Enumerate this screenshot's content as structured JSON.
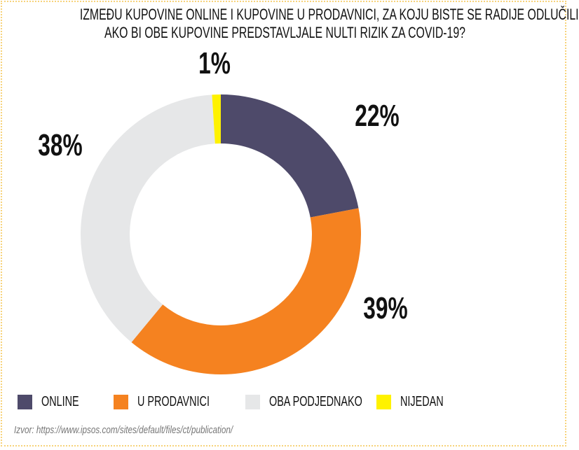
{
  "chart_data": {
    "type": "pie",
    "donut": true,
    "title": "IZMEĐU KUPOVINE ONLINE I KUPOVINE U PRODAVNICI, ZA KOJU BISTE SE RADIJE ODLUČILI AKO BI OBE KUPOVINE PREDSTAVLJALE NULTI RIZIK ZA COVID-19?",
    "title_lines": [
      "IZMEĐU KUPOVINE ONLINE I KUPOVINE U PRODAVNICI, ZA KOJU BISTE SE RADIJE ODLUČILI",
      "AKO BI OBE KUPOVINE PREDSTAVLJALE NULTI RIZIK ZA COVID-19?"
    ],
    "categories": [
      "ONLINE",
      "U PRODAVNICI",
      "OBA PODJEDNAKO",
      "NIJEDAN"
    ],
    "values": [
      22,
      39,
      38,
      1
    ],
    "labels": [
      "22%",
      "39%",
      "38%",
      "1%"
    ],
    "colors": [
      "#4e4a6a",
      "#f58220",
      "#e6e7e8",
      "#fff200"
    ],
    "legend_position": "bottom"
  },
  "source": "Izvor: https://www.ipsos.com/sites/default/files/ct/publication/"
}
